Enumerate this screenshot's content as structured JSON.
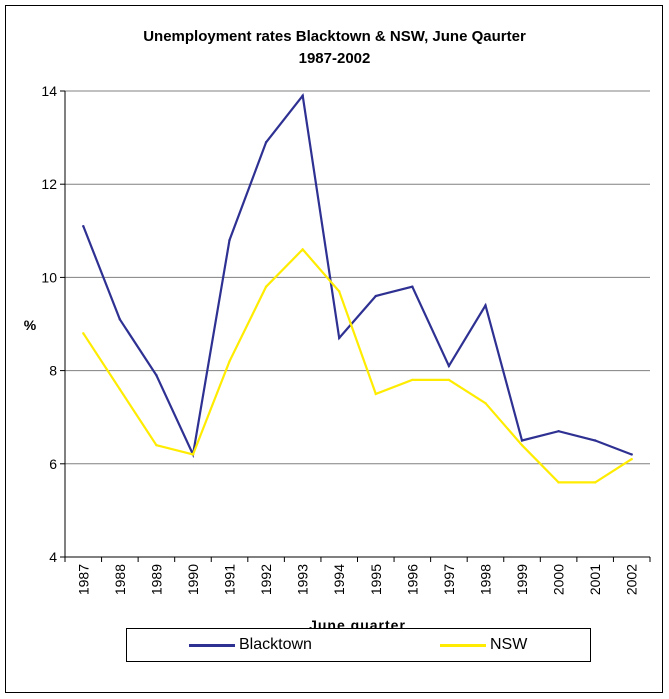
{
  "chart_data": {
    "type": "line",
    "title_line1": "Unemployment rates Blacktown & NSW, June Qaurter",
    "title_line2": "1987-2002",
    "xlabel": "June quarter",
    "ylabel": "%",
    "ylim": [
      4,
      14
    ],
    "yticks": [
      "4",
      "6",
      "8",
      "10",
      "12",
      "14"
    ],
    "categories": [
      "1987",
      "1988",
      "1989",
      "1990",
      "1991",
      "1992",
      "1993",
      "1994",
      "1995",
      "1996",
      "1997",
      "1998",
      "1999",
      "2000",
      "2001",
      "2002"
    ],
    "grid": "horizontal",
    "legend_position": "bottom",
    "series": [
      {
        "name": "Blacktown",
        "color": "#2e3192",
        "values": [
          11.1,
          9.1,
          7.9,
          6.2,
          10.8,
          12.9,
          13.9,
          8.7,
          9.6,
          9.8,
          8.1,
          9.4,
          6.5,
          6.7,
          6.5,
          6.2
        ]
      },
      {
        "name": "NSW",
        "color": "#ffec00",
        "values": [
          8.8,
          7.6,
          6.4,
          6.2,
          8.2,
          9.8,
          10.6,
          9.7,
          7.5,
          7.8,
          7.8,
          7.3,
          6.4,
          5.6,
          5.6,
          6.1
        ]
      }
    ]
  }
}
